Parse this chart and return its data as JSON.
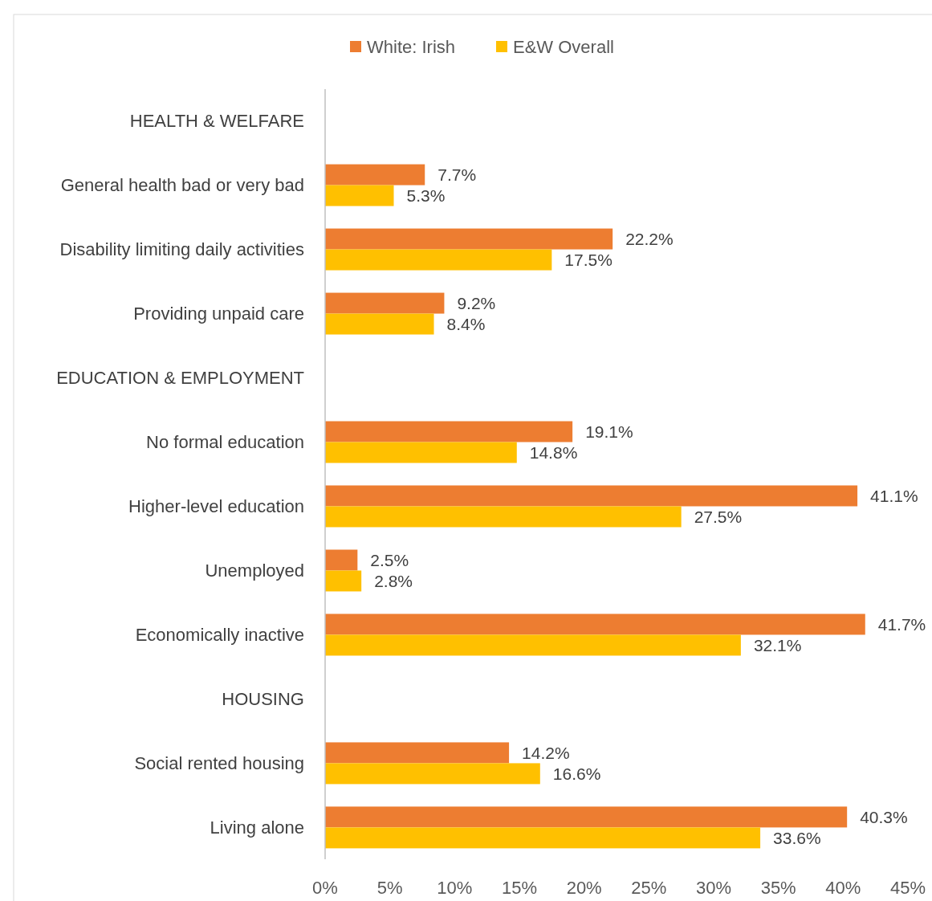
{
  "chart_data": {
    "type": "bar",
    "orientation": "horizontal",
    "legend": "top",
    "categories": [
      "HEALTH & WELFARE",
      "General health bad or very bad",
      "Disability limiting daily activities",
      "Providing unpaid care",
      "EDUCATION & EMPLOYMENT",
      "No formal education",
      "Higher-level education",
      "Unemployed",
      "Economically inactive",
      "HOUSING",
      "Social rented housing",
      "Living alone"
    ],
    "series": [
      {
        "name": "White: Irish",
        "color": "#ed7d31",
        "values": [
          null,
          7.7,
          22.2,
          9.2,
          null,
          19.1,
          41.1,
          2.5,
          41.7,
          null,
          14.2,
          40.3
        ],
        "value_labels": [
          null,
          "7.7%",
          "22.2%",
          "9.2%",
          null,
          "19.1%",
          "41.1%",
          "2.5%",
          "41.7%",
          null,
          "14.2%",
          "40.3%"
        ]
      },
      {
        "name": "E&W Overall",
        "color": "#ffc000",
        "values": [
          null,
          5.3,
          17.5,
          8.4,
          null,
          14.8,
          27.5,
          2.8,
          32.1,
          null,
          16.6,
          33.6
        ],
        "value_labels": [
          null,
          "5.3%",
          "17.5%",
          "8.4%",
          null,
          "14.8%",
          "27.5%",
          "2.8%",
          "32.1%",
          null,
          "16.6%",
          "33.6%"
        ]
      }
    ],
    "xlim": [
      0,
      45
    ],
    "xticks": [
      {
        "value": 0,
        "label": "0%"
      },
      {
        "value": 5,
        "label": "5%"
      },
      {
        "value": 10,
        "label": "10%"
      },
      {
        "value": 15,
        "label": "15%"
      },
      {
        "value": 20,
        "label": "20%"
      },
      {
        "value": 25,
        "label": "25%"
      },
      {
        "value": 30,
        "label": "30%"
      },
      {
        "value": 35,
        "label": "35%"
      },
      {
        "value": 40,
        "label": "40%"
      },
      {
        "value": 45,
        "label": "45%"
      }
    ]
  }
}
